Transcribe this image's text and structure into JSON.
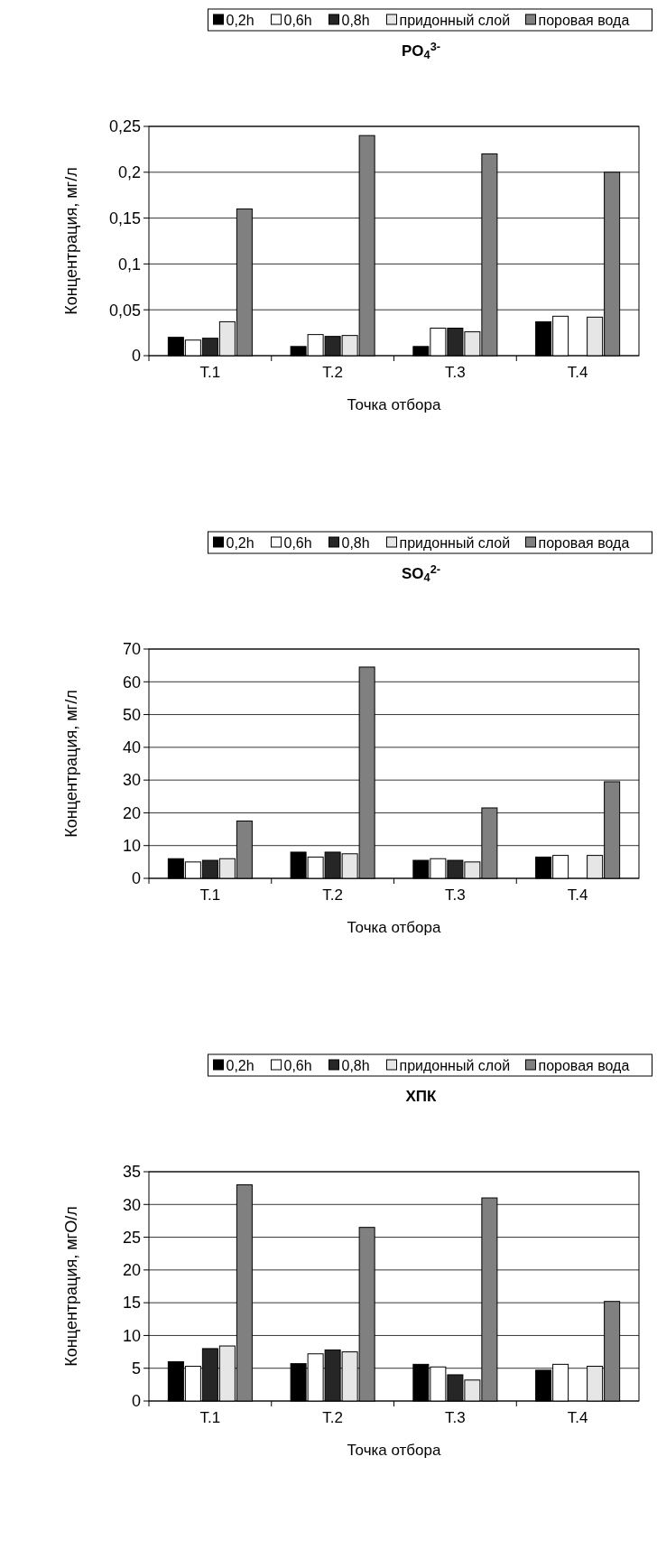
{
  "chart_data": [
    {
      "type": "bar",
      "title": "PO$_{4}$$^{3-}$",
      "xlabel": "Точка отбора",
      "ylabel": "Концентрация, мг/л",
      "categories": [
        "Т.1",
        "Т.2",
        "Т.3",
        "Т.4"
      ],
      "ylim": [
        0,
        0.25
      ],
      "yticks": [
        {
          "value": 0,
          "label": "0"
        },
        {
          "value": 0.05,
          "label": "0,05"
        },
        {
          "value": 0.1,
          "label": "0,1"
        },
        {
          "value": 0.15,
          "label": "0,15"
        },
        {
          "value": 0.2,
          "label": "0,2"
        },
        {
          "value": 0.25,
          "label": "0,25"
        }
      ],
      "grid": "y",
      "legend": "top",
      "series": [
        {
          "name": "0,2h",
          "color": "#000000",
          "values": [
            0.02,
            0.01,
            0.01,
            0.037
          ]
        },
        {
          "name": "0,6h",
          "color": "#ffffff",
          "values": [
            0.017,
            0.023,
            0.03,
            0.043
          ]
        },
        {
          "name": "0,8h",
          "color": "#262626",
          "values": [
            0.019,
            0.021,
            0.03,
            null
          ]
        },
        {
          "name": "придонный слой",
          "color": "#e6e6e6",
          "values": [
            0.037,
            0.022,
            0.026,
            0.042
          ]
        },
        {
          "name": "поровая вода",
          "color": "#808080",
          "values": [
            0.16,
            0.24,
            0.22,
            0.2
          ]
        }
      ]
    },
    {
      "type": "bar",
      "title": "SO$_{4}$$^{2-}$",
      "xlabel": "Точка отбора",
      "ylabel": "Концентрация, мг/л",
      "categories": [
        "Т.1",
        "Т.2",
        "Т.3",
        "Т.4"
      ],
      "ylim": [
        0,
        70
      ],
      "yticks": [
        0,
        10,
        20,
        30,
        40,
        50,
        60,
        70
      ],
      "grid": "y",
      "legend": "top",
      "series": [
        {
          "name": "0,2h",
          "color": "#000000",
          "values": [
            6,
            8,
            5.5,
            6.5
          ]
        },
        {
          "name": "0,6h",
          "color": "#ffffff",
          "values": [
            5,
            6.5,
            6,
            7
          ]
        },
        {
          "name": "0,8h",
          "color": "#262626",
          "values": [
            5.5,
            8,
            5.5,
            null
          ]
        },
        {
          "name": "придонный слой",
          "color": "#e6e6e6",
          "values": [
            6,
            7.5,
            5,
            7
          ]
        },
        {
          "name": "поровая вода",
          "color": "#808080",
          "values": [
            17.5,
            64.5,
            21.5,
            29.5
          ]
        }
      ]
    },
    {
      "type": "bar",
      "title": "ХПК",
      "xlabel": "Точка отбора",
      "ylabel": "Концентрация, мгО/л",
      "categories": [
        "Т.1",
        "Т.2",
        "Т.3",
        "Т.4"
      ],
      "ylim": [
        0,
        35
      ],
      "yticks": [
        0,
        5,
        10,
        15,
        20,
        25,
        30,
        35
      ],
      "grid": "y",
      "legend": "top",
      "series": [
        {
          "name": "0,2h",
          "color": "#000000",
          "values": [
            6,
            5.7,
            5.6,
            4.7
          ]
        },
        {
          "name": "0,6h",
          "color": "#ffffff",
          "values": [
            5.3,
            7.2,
            5.2,
            5.6
          ]
        },
        {
          "name": "0,8h",
          "color": "#262626",
          "values": [
            8,
            7.8,
            4,
            null
          ]
        },
        {
          "name": "придонный слой",
          "color": "#e6e6e6",
          "values": [
            8.4,
            7.5,
            3.2,
            5.3
          ]
        },
        {
          "name": "поровая вода",
          "color": "#808080",
          "values": [
            33,
            26.5,
            31,
            15.2
          ]
        }
      ]
    }
  ]
}
